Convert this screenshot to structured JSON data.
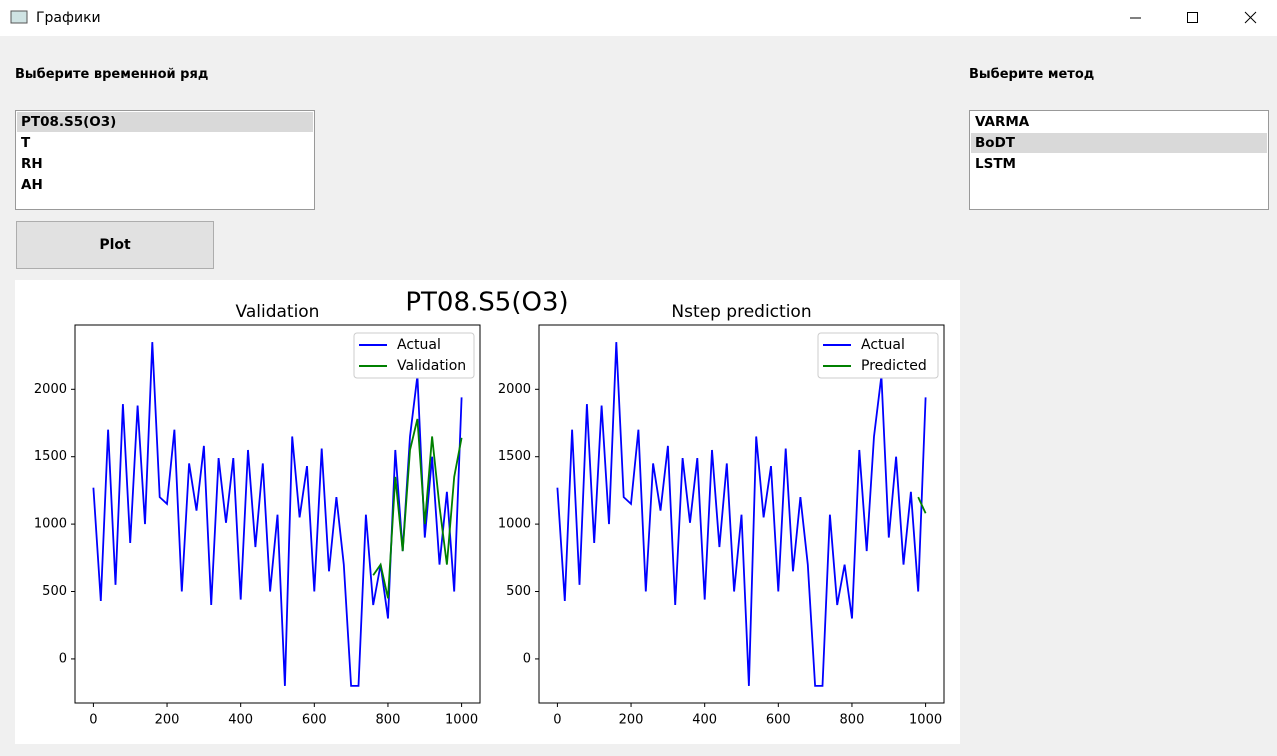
{
  "window": {
    "title": "Графики"
  },
  "series_panel": {
    "label": "Выберите временной ряд",
    "items": [
      "PT08.S5(O3)",
      "T",
      "RH",
      "AH"
    ],
    "selected": 0
  },
  "method_panel": {
    "label": "Выберите метод",
    "items": [
      "VARMA",
      "BoDT",
      "LSTM"
    ],
    "selected": 1
  },
  "button": "Plot",
  "figure_title": "PT08.S5(O3)",
  "chart_data": [
    {
      "type": "line",
      "title": "Validation",
      "x": [
        0,
        20,
        40,
        60,
        80,
        100,
        120,
        140,
        160,
        180,
        200,
        220,
        240,
        260,
        280,
        300,
        320,
        340,
        360,
        380,
        400,
        420,
        440,
        460,
        480,
        500,
        520,
        540,
        560,
        580,
        600,
        620,
        640,
        660,
        680,
        700,
        720,
        740,
        760,
        780,
        800,
        820,
        840,
        860,
        880,
        900,
        920,
        940,
        960,
        980,
        1000
      ],
      "series": [
        {
          "name": "Actual",
          "color": "#0000ff",
          "values": [
            1270,
            430,
            1700,
            550,
            1890,
            860,
            1880,
            1000,
            2350,
            1200,
            1150,
            1700,
            500,
            1450,
            1100,
            1580,
            400,
            1490,
            1010,
            1490,
            440,
            1550,
            830,
            1450,
            500,
            1070,
            -200,
            1650,
            1050,
            1430,
            500,
            1560,
            650,
            1200,
            700,
            -200,
            -200,
            1070,
            400,
            700,
            300,
            1550,
            800,
            1650,
            2100,
            900,
            1500,
            700,
            1240,
            500,
            1940
          ]
        },
        {
          "name": "Validation",
          "color": "#008000",
          "values": [
            null,
            null,
            null,
            null,
            null,
            null,
            null,
            null,
            null,
            null,
            null,
            null,
            null,
            null,
            null,
            null,
            null,
            null,
            null,
            null,
            null,
            null,
            null,
            null,
            null,
            null,
            null,
            null,
            null,
            null,
            null,
            null,
            null,
            null,
            null,
            null,
            null,
            null,
            620,
            700,
            450,
            1350,
            800,
            1550,
            1780,
            1000,
            1650,
            1130,
            700,
            1350,
            1640
          ]
        }
      ],
      "xlim": [
        -50,
        1050
      ],
      "ylim": [
        -327,
        2477
      ],
      "xticks": [
        0,
        200,
        400,
        600,
        800,
        1000
      ],
      "yticks": [
        0,
        500,
        1000,
        1500,
        2000
      ],
      "legend": "upper right"
    },
    {
      "type": "line",
      "title": "Nstep prediction",
      "x": [
        0,
        20,
        40,
        60,
        80,
        100,
        120,
        140,
        160,
        180,
        200,
        220,
        240,
        260,
        280,
        300,
        320,
        340,
        360,
        380,
        400,
        420,
        440,
        460,
        480,
        500,
        520,
        540,
        560,
        580,
        600,
        620,
        640,
        660,
        680,
        700,
        720,
        740,
        760,
        780,
        800,
        820,
        840,
        860,
        880,
        900,
        920,
        940,
        960,
        980,
        1000
      ],
      "series": [
        {
          "name": "Actual",
          "color": "#0000ff",
          "values": [
            1270,
            430,
            1700,
            550,
            1890,
            860,
            1880,
            1000,
            2350,
            1200,
            1150,
            1700,
            500,
            1450,
            1100,
            1580,
            400,
            1490,
            1010,
            1490,
            440,
            1550,
            830,
            1450,
            500,
            1070,
            -200,
            1650,
            1050,
            1430,
            500,
            1560,
            650,
            1200,
            700,
            -200,
            -200,
            1070,
            400,
            700,
            300,
            1550,
            800,
            1650,
            2100,
            900,
            1500,
            700,
            1240,
            500,
            1940
          ]
        },
        {
          "name": "Predicted",
          "color": "#008000",
          "values": [
            null,
            null,
            null,
            null,
            null,
            null,
            null,
            null,
            null,
            null,
            null,
            null,
            null,
            null,
            null,
            null,
            null,
            null,
            null,
            null,
            null,
            null,
            null,
            null,
            null,
            null,
            null,
            null,
            null,
            null,
            null,
            null,
            null,
            null,
            null,
            null,
            null,
            null,
            null,
            null,
            null,
            null,
            null,
            null,
            null,
            null,
            null,
            null,
            null,
            1200,
            1080
          ]
        }
      ],
      "xlim": [
        -50,
        1050
      ],
      "ylim": [
        -327,
        2477
      ],
      "xticks": [
        0,
        200,
        400,
        600,
        800,
        1000
      ],
      "yticks": [
        0,
        500,
        1000,
        1500,
        2000
      ],
      "legend": "upper right"
    }
  ]
}
